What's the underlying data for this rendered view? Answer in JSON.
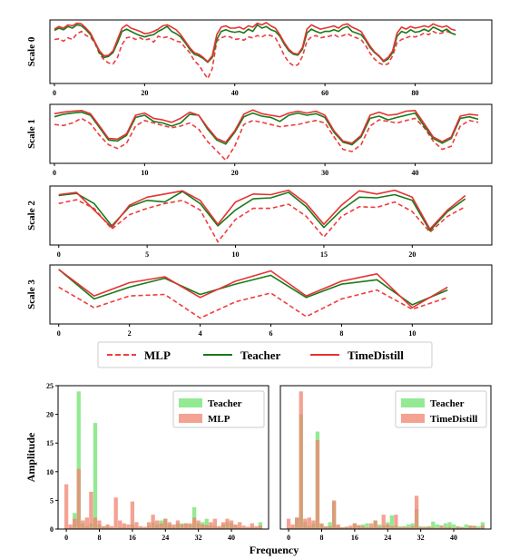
{
  "colors": {
    "mlp": "#ee3d3d",
    "teacher": "#1a7a1a",
    "timedistill": "#e63232",
    "bar_teacher": "#6fe36f",
    "bar_mlp": "#f0836f",
    "bar_timedistill": "#f0836f"
  },
  "legend_top": {
    "mlp": "MLP",
    "teacher": "Teacher",
    "timedistill": "TimeDistill"
  },
  "chart_data": [
    {
      "type": "line",
      "ylabel": "Scale 0",
      "x_ticks": [
        0,
        20,
        40,
        60,
        80
      ],
      "xlim": [
        -1,
        97
      ],
      "ylim": [
        -1.05,
        0.9
      ],
      "series": [
        {
          "name": "MLP",
          "style": "dashed",
          "values": [
            0.3,
            0.32,
            0.25,
            0.35,
            0.3,
            0.48,
            0.55,
            0.42,
            0.38,
            0.18,
            -0.15,
            -0.32,
            -0.42,
            -0.45,
            -0.25,
            0.15,
            0.35,
            0.38,
            0.3,
            0.35,
            0.28,
            0.32,
            0.22,
            0.4,
            0.35,
            0.38,
            0.32,
            0.25,
            0.22,
            0.05,
            -0.1,
            -0.35,
            -0.48,
            -0.7,
            -0.9,
            -0.6,
            0.25,
            0.35,
            0.4,
            0.38,
            0.3,
            0.32,
            0.28,
            0.38,
            0.35,
            0.42,
            0.38,
            0.45,
            0.42,
            0.35,
            0.1,
            -0.2,
            -0.4,
            -0.5,
            -0.48,
            -0.22,
            0.25,
            0.38,
            0.42,
            0.35,
            0.38,
            0.4,
            0.45,
            0.38,
            0.42,
            0.48,
            0.4,
            0.35,
            0.3,
            0.12,
            -0.12,
            -0.3,
            -0.42,
            -0.48,
            -0.45,
            -0.2,
            0.2,
            0.3,
            0.35,
            0.4,
            0.38,
            0.42,
            0.5,
            0.45,
            0.55,
            0.48,
            0.5,
            0.55,
            0.5,
            0.45
          ]
        },
        {
          "name": "Teacher",
          "style": "solid",
          "values": [
            0.58,
            0.65,
            0.6,
            0.7,
            0.65,
            0.75,
            0.72,
            0.6,
            0.45,
            0.2,
            -0.1,
            -0.25,
            -0.22,
            -0.1,
            0.2,
            0.55,
            0.62,
            0.55,
            0.48,
            0.42,
            0.38,
            0.42,
            0.45,
            0.55,
            0.62,
            0.7,
            0.55,
            0.48,
            0.38,
            0.2,
            0.0,
            -0.15,
            -0.2,
            -0.28,
            -0.4,
            -0.25,
            0.3,
            0.55,
            0.6,
            0.55,
            0.52,
            0.55,
            0.5,
            0.62,
            0.55,
            0.75,
            0.65,
            0.7,
            0.6,
            0.55,
            0.4,
            0.15,
            -0.05,
            -0.15,
            -0.18,
            0.0,
            0.5,
            0.62,
            0.55,
            0.5,
            0.55,
            0.55,
            0.6,
            0.55,
            0.65,
            0.7,
            0.55,
            0.5,
            0.45,
            0.28,
            0.05,
            -0.1,
            -0.22,
            -0.38,
            -0.3,
            -0.1,
            0.4,
            0.55,
            0.5,
            0.6,
            0.52,
            0.55,
            0.62,
            0.55,
            0.68,
            0.62,
            0.55,
            0.62,
            0.5,
            0.45
          ]
        },
        {
          "name": "TimeDistill",
          "style": "solid",
          "values": [
            0.62,
            0.7,
            0.65,
            0.75,
            0.72,
            0.8,
            0.78,
            0.65,
            0.5,
            0.22,
            -0.05,
            -0.2,
            -0.18,
            -0.05,
            0.3,
            0.65,
            0.75,
            0.65,
            0.6,
            0.55,
            0.48,
            0.5,
            0.55,
            0.62,
            0.72,
            0.75,
            0.68,
            0.6,
            0.45,
            0.25,
            0.05,
            -0.1,
            -0.15,
            -0.25,
            -0.38,
            -0.2,
            0.45,
            0.68,
            0.72,
            0.65,
            0.65,
            0.68,
            0.62,
            0.72,
            0.68,
            0.8,
            0.75,
            0.82,
            0.72,
            0.65,
            0.45,
            0.2,
            0.0,
            -0.12,
            -0.15,
            0.05,
            0.62,
            0.75,
            0.68,
            0.62,
            0.65,
            0.68,
            0.72,
            0.65,
            0.75,
            0.78,
            0.68,
            0.62,
            0.55,
            0.32,
            0.1,
            -0.08,
            -0.2,
            -0.35,
            -0.25,
            -0.05,
            0.5,
            0.68,
            0.62,
            0.7,
            0.65,
            0.68,
            0.72,
            0.68,
            0.78,
            0.72,
            0.68,
            0.72,
            0.62,
            0.58
          ]
        }
      ]
    },
    {
      "type": "line",
      "ylabel": "Scale 1",
      "x_ticks": [
        0,
        10,
        20,
        30,
        40
      ],
      "xlim": [
        -0.5,
        48.5
      ],
      "ylim": [
        -1.0,
        0.9
      ],
      "series": [
        {
          "name": "MLP",
          "style": "dashed",
          "values": [
            0.25,
            0.22,
            0.3,
            0.45,
            0.28,
            -0.1,
            -0.4,
            -0.52,
            -0.35,
            0.2,
            0.38,
            0.3,
            0.22,
            0.15,
            0.2,
            0.3,
            0.1,
            -0.3,
            -0.6,
            -0.9,
            -0.45,
            0.25,
            0.38,
            0.32,
            0.25,
            0.18,
            0.22,
            0.25,
            0.32,
            0.38,
            0.3,
            -0.15,
            -0.55,
            -0.62,
            -0.4,
            0.2,
            0.4,
            0.35,
            0.3,
            0.38,
            0.45,
            0.15,
            -0.28,
            -0.55,
            -0.45,
            0.2,
            0.38,
            0.32
          ]
        },
        {
          "name": "Teacher",
          "style": "solid",
          "values": [
            0.5,
            0.58,
            0.62,
            0.65,
            0.55,
            0.15,
            -0.25,
            -0.28,
            -0.1,
            0.48,
            0.55,
            0.35,
            0.3,
            0.2,
            0.3,
            0.58,
            0.55,
            0.1,
            -0.25,
            -0.38,
            0.0,
            0.5,
            0.62,
            0.52,
            0.48,
            0.35,
            0.55,
            0.62,
            0.55,
            0.6,
            0.48,
            0.0,
            -0.32,
            -0.4,
            -0.15,
            0.45,
            0.52,
            0.4,
            0.48,
            0.55,
            0.62,
            0.2,
            -0.2,
            -0.35,
            -0.2,
            0.45,
            0.5,
            0.42
          ]
        },
        {
          "name": "TimeDistill",
          "style": "solid",
          "values": [
            0.6,
            0.65,
            0.68,
            0.7,
            0.6,
            0.2,
            -0.2,
            -0.22,
            -0.05,
            0.55,
            0.62,
            0.45,
            0.4,
            0.32,
            0.45,
            0.65,
            0.55,
            0.15,
            -0.2,
            -0.32,
            0.05,
            0.58,
            0.72,
            0.6,
            0.55,
            0.5,
            0.62,
            0.68,
            0.62,
            0.68,
            0.55,
            0.05,
            -0.28,
            -0.35,
            -0.1,
            0.55,
            0.65,
            0.55,
            0.58,
            0.68,
            0.7,
            0.28,
            -0.15,
            -0.3,
            -0.15,
            0.52,
            0.58,
            0.55
          ]
        }
      ]
    },
    {
      "type": "line",
      "ylabel": "Scale 2",
      "x_ticks": [
        0,
        5,
        10,
        15,
        20
      ],
      "xlim": [
        -0.5,
        24.5
      ],
      "ylim": [
        -1.0,
        0.85
      ],
      "series": [
        {
          "name": "MLP",
          "style": "dashed",
          "values": [
            0.3,
            0.42,
            0.15,
            -0.5,
            -0.05,
            0.15,
            0.3,
            0.4,
            0.1,
            -0.9,
            -0.2,
            0.15,
            0.15,
            0.28,
            -0.1,
            -0.75,
            -0.1,
            0.2,
            0.18,
            0.35,
            0.05,
            -0.6,
            -0.1,
            0.2
          ]
        },
        {
          "name": "Teacher",
          "style": "solid",
          "values": [
            0.55,
            0.62,
            0.3,
            -0.4,
            0.2,
            0.4,
            0.35,
            0.68,
            0.3,
            -0.4,
            0.1,
            0.45,
            0.48,
            0.65,
            0.2,
            -0.45,
            0.1,
            0.5,
            0.48,
            0.58,
            0.4,
            -0.55,
            0.05,
            0.45
          ]
        },
        {
          "name": "TimeDistill",
          "style": "solid",
          "values": [
            0.58,
            0.65,
            0.1,
            -0.45,
            0.25,
            0.5,
            0.6,
            0.7,
            0.4,
            -0.35,
            0.35,
            0.6,
            0.58,
            0.72,
            0.3,
            -0.35,
            0.25,
            0.7,
            0.6,
            0.72,
            0.5,
            -0.5,
            0.1,
            0.55
          ]
        }
      ]
    },
    {
      "type": "line",
      "ylabel": "Scale 3",
      "x_ticks": [
        0,
        2,
        4,
        6,
        8,
        10
      ],
      "xlim": [
        -0.25,
        12.25
      ],
      "ylim": [
        -1.05,
        0.95
      ],
      "series": [
        {
          "name": "MLP",
          "style": "dashed",
          "values": [
            0.2,
            -0.5,
            -0.1,
            -0.05,
            -0.85,
            -0.3,
            0.0,
            -0.8,
            -0.2,
            0.1,
            -0.55,
            -0.15
          ]
        },
        {
          "name": "Teacher",
          "style": "solid",
          "values": [
            0.8,
            -0.2,
            0.2,
            0.5,
            -0.05,
            0.3,
            0.6,
            -0.15,
            0.3,
            0.45,
            -0.4,
            0.1
          ]
        },
        {
          "name": "TimeDistill",
          "style": "solid",
          "values": [
            0.8,
            -0.1,
            0.35,
            0.55,
            -0.15,
            0.4,
            0.75,
            -0.1,
            0.4,
            0.65,
            -0.5,
            0.2
          ]
        }
      ]
    },
    {
      "type": "bar",
      "ylabel": "Amplitude",
      "xlabel": "Frequency",
      "x_ticks": [
        0,
        8,
        16,
        24,
        32,
        40
      ],
      "y_ticks": [
        0,
        5,
        10,
        15,
        20,
        25
      ],
      "xlim": [
        -2,
        49
      ],
      "ylim": [
        0,
        25
      ],
      "series": [
        {
          "name": "Teacher",
          "values": [
            0.2,
            0.3,
            2.8,
            24.0,
            1.0,
            0.5,
            1.0,
            18.5,
            0.8,
            0.4,
            0.5,
            0.2,
            0.2,
            0.3,
            0.4,
            0.2,
            0.8,
            0.3,
            0.2,
            0.2,
            0.6,
            1.2,
            0.8,
            1.5,
            1.8,
            0.8,
            0.4,
            1.0,
            1.0,
            1.0,
            0.8,
            3.8,
            1.0,
            1.2,
            1.8,
            0.6,
            0.5,
            0.4,
            0.8,
            1.2,
            1.0,
            0.6,
            0.3,
            0.2,
            0.2,
            0.4,
            0.2,
            1.2
          ]
        },
        {
          "name": "MLP",
          "values": [
            7.8,
            0.8,
            1.8,
            10.5,
            1.5,
            2.0,
            6.5,
            2.0,
            1.5,
            0.5,
            0.8,
            0.5,
            5.5,
            1.5,
            1.0,
            0.8,
            4.8,
            1.2,
            0.5,
            0.4,
            1.2,
            2.5,
            1.5,
            1.0,
            1.8,
            1.2,
            0.8,
            1.5,
            0.8,
            1.0,
            1.0,
            2.0,
            1.5,
            0.8,
            0.7,
            1.2,
            1.8,
            0.5,
            1.2,
            1.8,
            1.5,
            0.8,
            1.2,
            0.6,
            0.4,
            1.0,
            0.5,
            0.6
          ]
        }
      ]
    },
    {
      "type": "bar",
      "x_ticks": [
        0,
        8,
        16,
        24,
        32,
        40
      ],
      "xlim": [
        -2,
        49
      ],
      "ylim": [
        0,
        25
      ],
      "series": [
        {
          "name": "Teacher",
          "values": [
            0.2,
            0.3,
            2.0,
            20.0,
            1.2,
            0.5,
            1.0,
            17.0,
            0.8,
            0.5,
            1.2,
            4.8,
            0.5,
            0.3,
            0.4,
            0.3,
            1.0,
            0.6,
            0.8,
            1.0,
            0.4,
            1.5,
            0.8,
            0.6,
            1.2,
            2.4,
            0.6,
            0.5,
            0.5,
            0.8,
            1.0,
            3.5,
            0.5,
            0.4,
            0.5,
            1.3,
            0.8,
            0.6,
            1.0,
            1.2,
            0.8,
            0.5,
            0.4,
            0.8,
            0.6,
            0.6,
            0.5,
            1.2
          ]
        },
        {
          "name": "TimeDistill",
          "values": [
            1.8,
            0.8,
            2.0,
            24.0,
            1.8,
            2.0,
            1.5,
            15.5,
            1.0,
            0.4,
            0.5,
            5.0,
            0.8,
            0.3,
            0.4,
            0.6,
            1.0,
            0.7,
            0.5,
            0.3,
            1.0,
            1.5,
            0.4,
            2.5,
            0.8,
            0.5,
            2.5,
            0.3,
            0.4,
            0.3,
            0.5,
            5.8,
            0.3,
            0.4,
            0.4,
            0.3,
            0.2,
            0.6,
            0.3,
            0.4,
            0.2,
            0.4,
            0.3,
            0.2,
            0.6,
            0.5,
            0.2,
            0.6
          ]
        }
      ]
    }
  ]
}
